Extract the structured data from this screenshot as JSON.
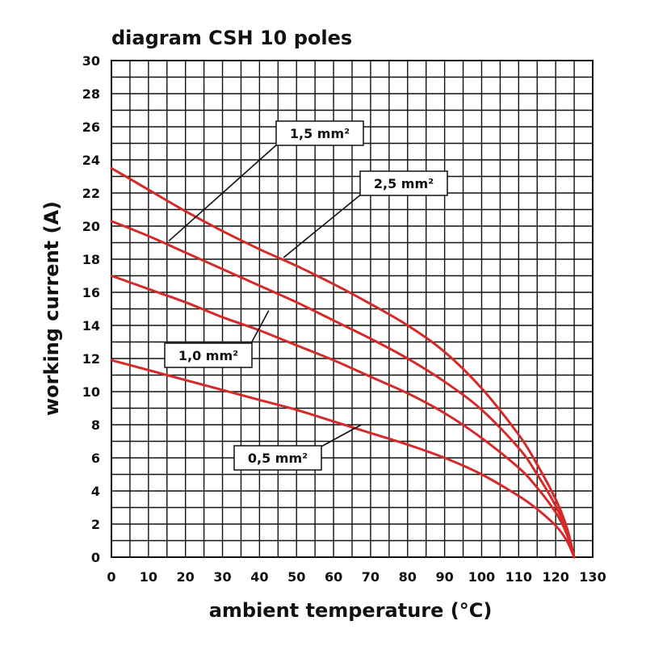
{
  "chart_data": {
    "type": "line",
    "title": "diagram CSH 10 poles",
    "xlabel": "ambient temperature (°C)",
    "ylabel": "working current (A)",
    "xlim": [
      0,
      130
    ],
    "ylim": [
      0,
      30
    ],
    "x_ticks": [
      "0",
      "10",
      "20",
      "30",
      "40",
      "50",
      "60",
      "70",
      "80",
      "90",
      "100",
      "110",
      "120",
      "130"
    ],
    "y_ticks": [
      "0",
      "2",
      "4",
      "6",
      "8",
      "10",
      "12",
      "14",
      "16",
      "18",
      "20",
      "22",
      "24",
      "26",
      "28",
      "30"
    ],
    "grid": true,
    "curve_color": "#d42a2a",
    "series": [
      {
        "name": "1,5 mm²",
        "x": [
          0,
          10,
          20,
          30,
          40,
          50,
          60,
          70,
          80,
          90,
          100,
          110,
          115,
          120,
          123,
          125
        ],
        "y": [
          23.5,
          22.2,
          20.9,
          19.7,
          18.6,
          17.6,
          16.5,
          15.3,
          14.0,
          12.4,
          10.2,
          7.4,
          5.6,
          3.5,
          1.8,
          0
        ]
      },
      {
        "name": "2,5 mm²",
        "x": [
          0,
          10,
          20,
          30,
          40,
          50,
          60,
          70,
          80,
          90,
          100,
          110,
          115,
          120,
          123,
          125
        ],
        "y": [
          20.3,
          19.4,
          18.4,
          17.4,
          16.4,
          15.4,
          14.3,
          13.2,
          12.0,
          10.6,
          8.9,
          6.6,
          5.0,
          3.1,
          1.6,
          0
        ]
      },
      {
        "name": "1,0 mm²",
        "x": [
          0,
          10,
          20,
          30,
          40,
          50,
          60,
          70,
          80,
          90,
          100,
          110,
          115,
          120,
          123,
          125
        ],
        "y": [
          17.0,
          16.2,
          15.4,
          14.5,
          13.7,
          12.8,
          11.9,
          10.9,
          9.9,
          8.7,
          7.2,
          5.4,
          4.2,
          2.7,
          1.4,
          0
        ]
      },
      {
        "name": "0,5 mm²",
        "x": [
          0,
          10,
          20,
          30,
          40,
          50,
          60,
          70,
          80,
          90,
          100,
          110,
          115,
          120,
          123,
          125
        ],
        "y": [
          11.9,
          11.3,
          10.7,
          10.1,
          9.5,
          8.9,
          8.2,
          7.5,
          6.8,
          6.0,
          5.0,
          3.7,
          2.9,
          1.9,
          1.0,
          0
        ]
      }
    ]
  }
}
